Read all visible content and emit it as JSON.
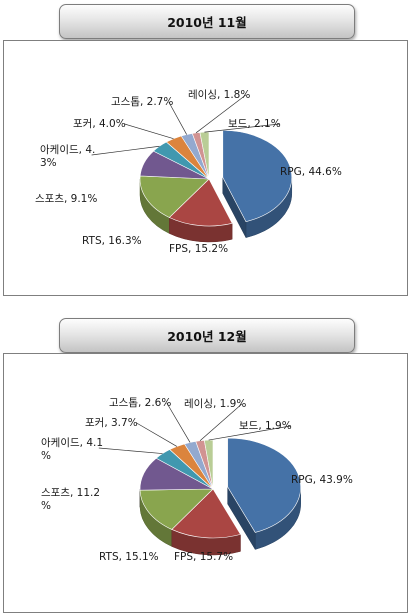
{
  "charts": [
    {
      "header": "2010년 11월"
    },
    {
      "header": "2010년 12월"
    }
  ],
  "chart_data": [
    {
      "type": "pie",
      "title": "2010년 11월",
      "categories": [
        "RPG",
        "FPS",
        "RTS",
        "스포츠",
        "아케이드",
        "포커",
        "고스톱",
        "레이싱",
        "보드"
      ],
      "values": [
        44.6,
        15.2,
        16.3,
        9.1,
        4.3,
        4.0,
        2.7,
        1.8,
        2.1
      ],
      "labels": [
        "RPG, 44.6%",
        "FPS, 15.2%",
        "RTS, 16.3%",
        "스포츠, 9.1%",
        [
          "아케이드, 4.",
          "3%"
        ],
        "포커, 4.0%",
        "고스톱, 2.7%",
        "레이싱, 1.8%",
        "보드, 2.1%"
      ],
      "colors": [
        "#4572a7",
        "#aa4643",
        "#89a54e",
        "#71588f",
        "#4198af",
        "#db843d",
        "#93a9cf",
        "#d19392",
        "#b9cd96"
      ],
      "explode": "RPG"
    },
    {
      "type": "pie",
      "title": "2010년 12월",
      "categories": [
        "RPG",
        "FPS",
        "RTS",
        "스포츠",
        "아케이드",
        "포커",
        "고스톱",
        "레이싱",
        "보드"
      ],
      "values": [
        43.9,
        15.7,
        15.1,
        11.2,
        4.1,
        3.7,
        2.6,
        1.9,
        1.9
      ],
      "labels": [
        "RPG, 43.9%",
        "FPS, 15.7%",
        "RTS, 15.1%",
        [
          "스포츠, 11.2",
          "%"
        ],
        [
          "아케이드, 4.1",
          "%"
        ],
        "포커, 3.7%",
        "고스톱, 2.6%",
        "레이싱, 1.9%",
        "보드, 1.9%"
      ],
      "colors": [
        "#4572a7",
        "#aa4643",
        "#89a54e",
        "#71588f",
        "#4198af",
        "#db843d",
        "#93a9cf",
        "#d19392",
        "#b9cd96"
      ],
      "explode": "RPG"
    }
  ]
}
